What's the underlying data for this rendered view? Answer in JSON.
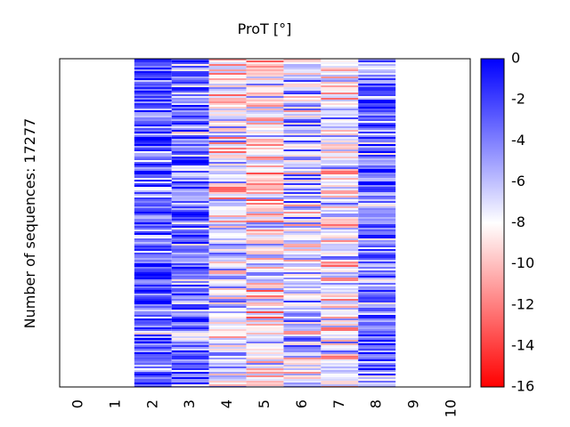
{
  "chart_data": {
    "type": "heatmap",
    "title": "ProT [°]",
    "ylabel": "Number of sequences: 17277",
    "xlabel": "",
    "x_ticks": [
      "0",
      "1",
      "2",
      "3",
      "4",
      "5",
      "6",
      "7",
      "8",
      "9",
      "10"
    ],
    "x_range": [
      -0.5,
      10.5
    ],
    "filled_columns": [
      2,
      3,
      4,
      5,
      6,
      7,
      8
    ],
    "column_mean_values": {
      "2": -3.0,
      "3": -3.6,
      "4": -8.0,
      "5": -8.6,
      "6": -6.5,
      "7": -7.6,
      "8": -4.0
    },
    "n_rows": 17277,
    "colorbar": {
      "range": [
        -16,
        0
      ],
      "ticks": [
        "0",
        "-2",
        "-4",
        "-6",
        "-8",
        "-10",
        "-12",
        "-14",
        "-16"
      ],
      "tick_values": [
        0,
        -2,
        -4,
        -6,
        -8,
        -10,
        -12,
        -14,
        -16
      ],
      "colormap": "bwr",
      "color_high": "#0000ff",
      "color_mid": "#ffffff",
      "color_low": "#ff0000"
    },
    "grid": false
  }
}
